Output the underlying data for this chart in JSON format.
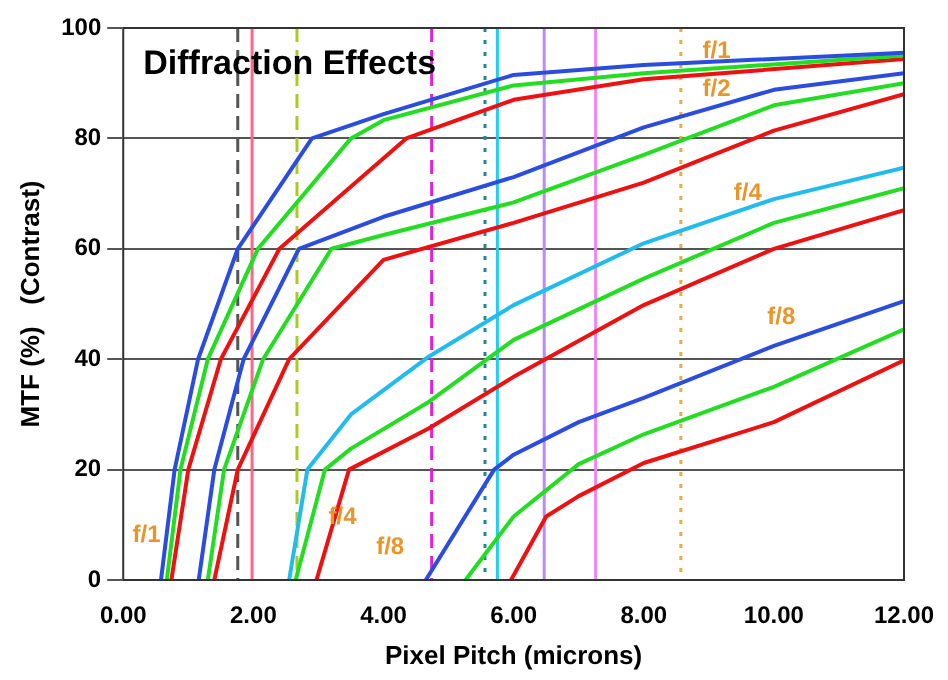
{
  "chart_data": {
    "type": "line",
    "title": "Diffraction Effects",
    "xlabel": "Pixel Pitch (microns)",
    "ylabel": "MTF (%)   (Contrast)",
    "xlim": [
      0,
      12
    ],
    "ylim": [
      0,
      100
    ],
    "xticks": [
      {
        "value": 0,
        "label": "0.00"
      },
      {
        "value": 2,
        "label": "2.00"
      },
      {
        "value": 4,
        "label": "4.00"
      },
      {
        "value": 6,
        "label": "6.00"
      },
      {
        "value": 8,
        "label": "8.00"
      },
      {
        "value": 10,
        "label": "10.00"
      },
      {
        "value": 12,
        "label": "12.00"
      }
    ],
    "yticks": [
      0,
      20,
      40,
      60,
      80,
      100
    ],
    "grid": "y",
    "legend": false,
    "marker": "none",
    "line_style": "solid",
    "series": [
      {
        "color": "#2a4de0",
        "x": [
          0.58,
          0.79,
          1.15,
          1.76,
          2.9,
          4,
          6,
          8,
          12
        ],
        "values": [
          0,
          20,
          40,
          60,
          80,
          84.4,
          91.5,
          93.3,
          95.5
        ]
      },
      {
        "color": "#22dd22",
        "x": [
          0.67,
          0.88,
          1.3,
          2.07,
          3.5,
          4,
          6,
          8,
          12
        ],
        "values": [
          0,
          20,
          40,
          60,
          80,
          83.3,
          89.6,
          91.8,
          95
        ]
      },
      {
        "color": "#ee1111",
        "x": [
          0.74,
          1,
          1.5,
          2.4,
          4.35,
          6,
          8,
          12
        ],
        "values": [
          0,
          20,
          40,
          60,
          80,
          87,
          90.7,
          94.4
        ]
      },
      {
        "color": "#2a4de0",
        "x": [
          1.16,
          1.4,
          1.85,
          2.7,
          4,
          6,
          8,
          10,
          12
        ],
        "values": [
          0,
          20,
          40,
          60,
          65.8,
          73,
          82,
          88.8,
          91.8
        ]
      },
      {
        "color": "#22dd22",
        "x": [
          1.3,
          1.55,
          2.15,
          3.2,
          4,
          6,
          8,
          10,
          12
        ],
        "values": [
          0,
          20,
          40,
          60,
          62.5,
          68.4,
          77,
          86,
          90
        ]
      },
      {
        "color": "#ee1111",
        "x": [
          1.4,
          1.76,
          2.55,
          4,
          6,
          8,
          10,
          12
        ],
        "values": [
          0,
          20,
          40,
          58,
          64.7,
          72,
          81.4,
          88
        ]
      },
      {
        "color": "#22bbee",
        "x": [
          2.55,
          2.83,
          3.5,
          4.7,
          6,
          8,
          10,
          12
        ],
        "values": [
          0,
          20,
          30,
          40.5,
          49.8,
          61,
          69,
          74.7
        ]
      },
      {
        "color": "#22dd22",
        "x": [
          2.65,
          3.1,
          3.5,
          4.7,
          6,
          8,
          10,
          12
        ],
        "values": [
          0,
          20,
          23.8,
          32.3,
          43.5,
          54.6,
          64.7,
          71
        ]
      },
      {
        "color": "#ee1111",
        "x": [
          2.97,
          3.47,
          4.7,
          6,
          8,
          10,
          12
        ],
        "values": [
          0,
          20,
          27.5,
          36.8,
          49.8,
          60,
          67
        ]
      },
      {
        "color": "#2a4de0",
        "x": [
          4.65,
          5.7,
          6,
          7,
          8,
          10,
          12
        ],
        "values": [
          0,
          20,
          22.7,
          28.6,
          33,
          42.4,
          50.5
        ]
      },
      {
        "color": "#22dd22",
        "x": [
          5.26,
          6,
          7,
          8,
          10,
          12
        ],
        "values": [
          0,
          11.5,
          21,
          26.4,
          35,
          45.4
        ]
      },
      {
        "color": "#ee1111",
        "x": [
          5.96,
          6.5,
          7,
          8,
          10,
          12
        ],
        "values": [
          0,
          11.5,
          15.2,
          21.2,
          28.6,
          39.8
        ]
      }
    ],
    "ref_lines": [
      {
        "axis": "x",
        "value": 1.76,
        "color": "#555555",
        "line_style": "dashed"
      },
      {
        "axis": "x",
        "value": 1.98,
        "color": "#ff6688",
        "line_style": "solid"
      },
      {
        "axis": "x",
        "value": 2.67,
        "color": "#aacc22",
        "line_style": "dashed"
      },
      {
        "axis": "x",
        "value": 4.74,
        "color": "#dd22dd",
        "line_style": "dashed"
      },
      {
        "axis": "x",
        "value": 5.56,
        "color": "#228888",
        "line_style": "dotted"
      },
      {
        "axis": "x",
        "value": 5.75,
        "color": "#22ccee",
        "line_style": "solid"
      },
      {
        "axis": "x",
        "value": 6.47,
        "color": "#bb88ff",
        "line_style": "solid"
      },
      {
        "axis": "x",
        "value": 7.26,
        "color": "#ee88ee",
        "line_style": "solid"
      },
      {
        "axis": "x",
        "value": 8.57,
        "color": "#eeaa44",
        "line_style": "dotted"
      }
    ],
    "annotations": [
      "f/1",
      "f/4",
      "f/8",
      "f/1",
      "f/2",
      "f/4",
      "f/8"
    ]
  }
}
